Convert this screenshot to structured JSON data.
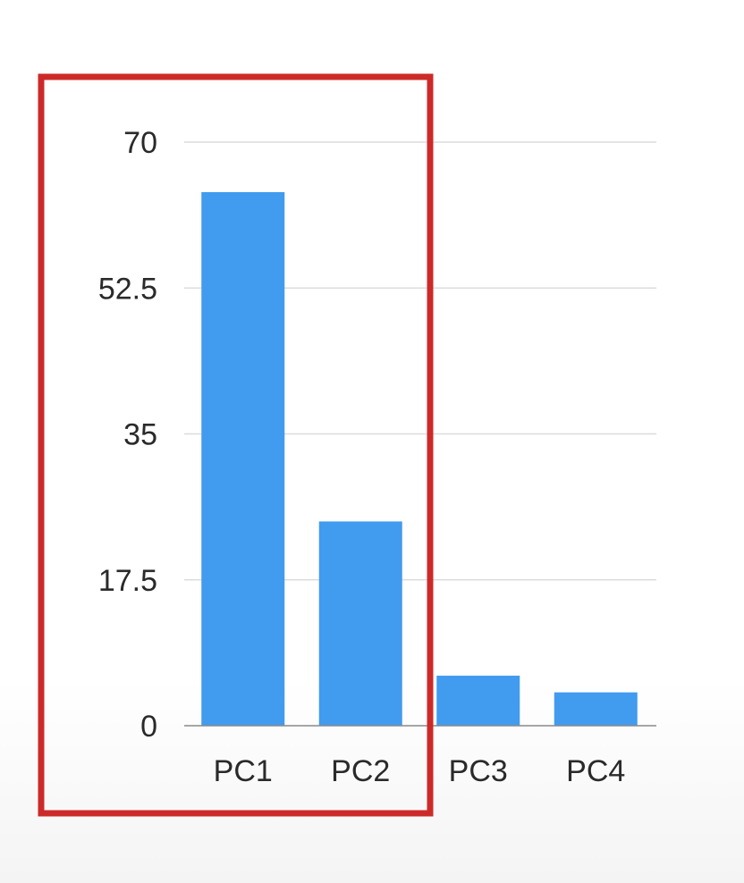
{
  "chart_data": {
    "type": "bar",
    "categories": [
      "PC1",
      "PC2",
      "PC3",
      "PC4"
    ],
    "values": [
      64,
      24.5,
      6,
      4
    ],
    "ylim": [
      0,
      70
    ],
    "yticks": [
      "0",
      "17.5",
      "35",
      "52.5",
      "70"
    ],
    "grid": true,
    "bar_color": "#419bef",
    "highlight": {
      "categories": [
        "PC1",
        "PC2"
      ],
      "color": "#cc2a28"
    }
  }
}
